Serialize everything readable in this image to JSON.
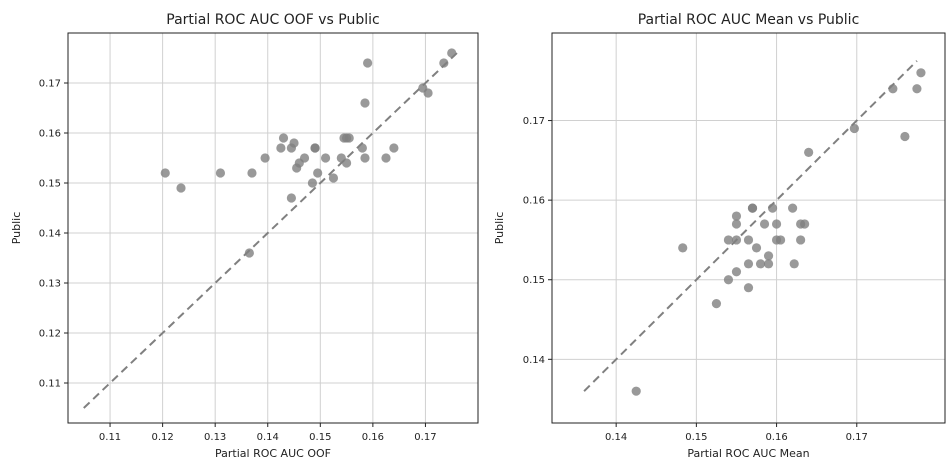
{
  "chart_data": [
    {
      "type": "scatter",
      "title": "Partial ROC AUC OOF vs Public",
      "xlabel": "Partial ROC AUC OOF",
      "ylabel": "Public",
      "xlim": [
        0.102,
        0.18
      ],
      "ylim": [
        0.102,
        0.18
      ],
      "xticks": [
        0.11,
        0.12,
        0.13,
        0.14,
        0.15,
        0.16,
        0.17
      ],
      "yticks": [
        0.11,
        0.12,
        0.13,
        0.14,
        0.15,
        0.16,
        0.17
      ],
      "tick_labels": [
        "0.11",
        "0.12",
        "0.13",
        "0.14",
        "0.15",
        "0.16",
        "0.17"
      ],
      "grid": true,
      "reference_line": [
        [
          0.105,
          0.105
        ],
        [
          0.176,
          0.176
        ]
      ],
      "point_color": "#808080",
      "line_color": "#808080",
      "points": [
        [
          0.1205,
          0.152
        ],
        [
          0.1235,
          0.149
        ],
        [
          0.131,
          0.152
        ],
        [
          0.137,
          0.152
        ],
        [
          0.1365,
          0.136
        ],
        [
          0.1395,
          0.155
        ],
        [
          0.1425,
          0.157
        ],
        [
          0.143,
          0.159
        ],
        [
          0.1445,
          0.147
        ],
        [
          0.1445,
          0.157
        ],
        [
          0.145,
          0.158
        ],
        [
          0.1455,
          0.153
        ],
        [
          0.146,
          0.154
        ],
        [
          0.147,
          0.155
        ],
        [
          0.1485,
          0.15
        ],
        [
          0.149,
          0.157
        ],
        [
          0.149,
          0.157
        ],
        [
          0.1495,
          0.152
        ],
        [
          0.151,
          0.155
        ],
        [
          0.1525,
          0.151
        ],
        [
          0.154,
          0.155
        ],
        [
          0.1545,
          0.159
        ],
        [
          0.155,
          0.154
        ],
        [
          0.155,
          0.159
        ],
        [
          0.1555,
          0.159
        ],
        [
          0.158,
          0.157
        ],
        [
          0.1585,
          0.155
        ],
        [
          0.1585,
          0.166
        ],
        [
          0.159,
          0.174
        ],
        [
          0.1625,
          0.155
        ],
        [
          0.164,
          0.157
        ],
        [
          0.1695,
          0.169
        ],
        [
          0.1705,
          0.168
        ],
        [
          0.1735,
          0.174
        ],
        [
          0.175,
          0.176
        ]
      ]
    },
    {
      "type": "scatter",
      "title": "Partial ROC AUC Mean vs Public",
      "xlabel": "Partial ROC AUC Mean",
      "ylabel": "Public",
      "xlim": [
        0.132,
        0.181
      ],
      "ylim": [
        0.132,
        0.181
      ],
      "xticks": [
        0.14,
        0.15,
        0.16,
        0.17
      ],
      "yticks": [
        0.14,
        0.15,
        0.16,
        0.17
      ],
      "tick_labels": [
        "0.14",
        "0.15",
        "0.16",
        "0.17"
      ],
      "grid": true,
      "reference_line": [
        [
          0.136,
          0.136
        ],
        [
          0.1775,
          0.1775
        ]
      ],
      "point_color": "#808080",
      "line_color": "#808080",
      "points": [
        [
          0.1425,
          0.136
        ],
        [
          0.1483,
          0.154
        ],
        [
          0.1525,
          0.147
        ],
        [
          0.154,
          0.15
        ],
        [
          0.154,
          0.155
        ],
        [
          0.155,
          0.151
        ],
        [
          0.155,
          0.155
        ],
        [
          0.155,
          0.157
        ],
        [
          0.155,
          0.158
        ],
        [
          0.1565,
          0.149
        ],
        [
          0.1565,
          0.152
        ],
        [
          0.1565,
          0.155
        ],
        [
          0.157,
          0.159
        ],
        [
          0.157,
          0.159
        ],
        [
          0.1575,
          0.154
        ],
        [
          0.158,
          0.152
        ],
        [
          0.1585,
          0.157
        ],
        [
          0.159,
          0.152
        ],
        [
          0.159,
          0.153
        ],
        [
          0.1595,
          0.159
        ],
        [
          0.16,
          0.155
        ],
        [
          0.16,
          0.157
        ],
        [
          0.1605,
          0.155
        ],
        [
          0.162,
          0.159
        ],
        [
          0.1622,
          0.152
        ],
        [
          0.163,
          0.155
        ],
        [
          0.163,
          0.157
        ],
        [
          0.1635,
          0.157
        ],
        [
          0.164,
          0.166
        ],
        [
          0.1697,
          0.169
        ],
        [
          0.1745,
          0.174
        ],
        [
          0.176,
          0.168
        ],
        [
          0.1775,
          0.174
        ],
        [
          0.178,
          0.176
        ]
      ]
    }
  ]
}
